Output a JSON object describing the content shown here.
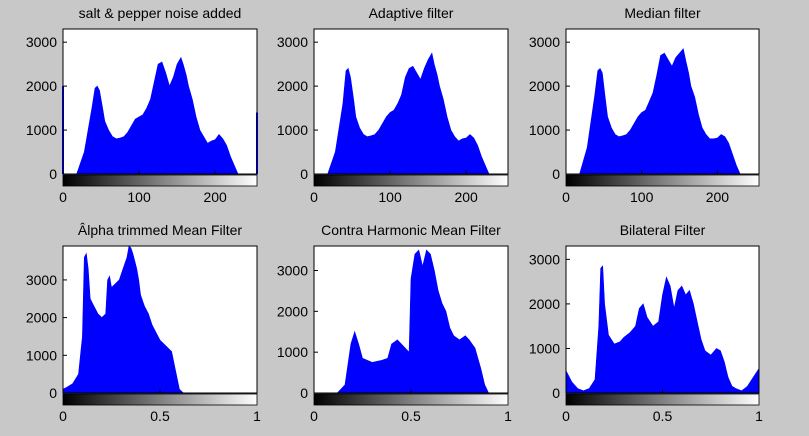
{
  "figure": {
    "background": "#c8c8c8",
    "bar_color": "#0000ff"
  },
  "chart_data": [
    {
      "type": "histogram",
      "title": "salt & pepper noise added",
      "xlim": [
        0,
        255
      ],
      "ylim": [
        0,
        3300
      ],
      "xticks": [
        0,
        100,
        200
      ],
      "xtick_labels": [
        "0",
        "100",
        "200"
      ],
      "yticks": [
        0,
        1000,
        2000,
        3000
      ],
      "ytick_labels": [
        "0",
        "1000",
        "2000",
        "3000"
      ],
      "x": [
        0,
        18,
        28,
        38,
        42,
        45,
        48,
        52,
        55,
        60,
        65,
        70,
        75,
        80,
        85,
        90,
        95,
        100,
        105,
        110,
        115,
        120,
        125,
        130,
        135,
        140,
        145,
        150,
        155,
        158,
        162,
        165,
        170,
        175,
        180,
        185,
        190,
        195,
        200,
        205,
        210,
        215,
        220,
        225,
        230,
        240,
        255
      ],
      "values": [
        0,
        0,
        500,
        1500,
        1950,
        2000,
        1900,
        1500,
        1200,
        1000,
        850,
        800,
        820,
        850,
        950,
        1100,
        1250,
        1300,
        1350,
        1500,
        1700,
        2100,
        2500,
        2550,
        2300,
        2000,
        2200,
        2500,
        2650,
        2500,
        2250,
        2000,
        1700,
        1300,
        1000,
        850,
        700,
        750,
        780,
        900,
        800,
        650,
        400,
        200,
        0,
        0,
        0
      ],
      "spikes": [
        [
          0,
          2000
        ],
        [
          255,
          1400
        ]
      ]
    },
    {
      "type": "histogram",
      "title": "Adaptive filter",
      "xlim": [
        0,
        255
      ],
      "ylim": [
        0,
        3300
      ],
      "xticks": [
        0,
        100,
        200
      ],
      "xtick_labels": [
        "0",
        "100",
        "200"
      ],
      "yticks": [
        0,
        1000,
        2000,
        3000
      ],
      "ytick_labels": [
        "0",
        "1000",
        "2000",
        "3000"
      ],
      "x": [
        0,
        18,
        28,
        38,
        42,
        45,
        48,
        52,
        55,
        60,
        65,
        70,
        75,
        80,
        85,
        90,
        95,
        100,
        105,
        110,
        115,
        120,
        125,
        130,
        135,
        140,
        145,
        150,
        155,
        158,
        162,
        165,
        170,
        175,
        180,
        185,
        190,
        195,
        200,
        205,
        210,
        215,
        220,
        225,
        230,
        240,
        255
      ],
      "values": [
        0,
        0,
        500,
        1600,
        2350,
        2400,
        2200,
        1700,
        1300,
        1050,
        900,
        850,
        870,
        900,
        1000,
        1150,
        1300,
        1400,
        1450,
        1600,
        1800,
        2200,
        2400,
        2450,
        2300,
        2150,
        2400,
        2600,
        2750,
        2500,
        2250,
        2000,
        1700,
        1300,
        1000,
        850,
        750,
        800,
        820,
        900,
        820,
        650,
        400,
        200,
        0,
        0,
        0
      ],
      "spikes": []
    },
    {
      "type": "histogram",
      "title": "Median filter",
      "xlim": [
        0,
        255
      ],
      "ylim": [
        0,
        3300
      ],
      "xticks": [
        0,
        100,
        200
      ],
      "xtick_labels": [
        "0",
        "100",
        "200"
      ],
      "yticks": [
        0,
        1000,
        2000,
        3000
      ],
      "ytick_labels": [
        "0",
        "1000",
        "2000",
        "3000"
      ],
      "x": [
        0,
        18,
        28,
        38,
        42,
        45,
        48,
        52,
        55,
        60,
        65,
        70,
        75,
        80,
        85,
        90,
        95,
        100,
        105,
        110,
        115,
        120,
        125,
        130,
        135,
        140,
        145,
        150,
        155,
        158,
        162,
        165,
        170,
        175,
        180,
        185,
        190,
        195,
        200,
        205,
        210,
        215,
        220,
        225,
        230,
        240,
        255
      ],
      "values": [
        0,
        0,
        600,
        1800,
        2350,
        2400,
        2300,
        1700,
        1300,
        1050,
        900,
        850,
        870,
        900,
        1000,
        1150,
        1300,
        1400,
        1450,
        1650,
        1850,
        2250,
        2700,
        2750,
        2600,
        2450,
        2650,
        2750,
        2850,
        2600,
        2300,
        2000,
        1750,
        1350,
        1050,
        900,
        800,
        800,
        820,
        900,
        850,
        700,
        450,
        200,
        0,
        0,
        0
      ],
      "spikes": []
    },
    {
      "type": "histogram",
      "title": "Âlpha trimmed Mean Filter",
      "xlim": [
        0,
        1
      ],
      "ylim": [
        0,
        3900
      ],
      "xticks": [
        0,
        0.5,
        1
      ],
      "xtick_labels": [
        "0",
        "0.5",
        "1"
      ],
      "yticks": [
        0,
        1000,
        2000,
        3000
      ],
      "ytick_labels": [
        "0",
        "1000",
        "2000",
        "3000"
      ],
      "x": [
        0,
        0.02,
        0.05,
        0.08,
        0.1,
        0.11,
        0.12,
        0.13,
        0.14,
        0.16,
        0.18,
        0.2,
        0.22,
        0.23,
        0.24,
        0.25,
        0.27,
        0.29,
        0.31,
        0.33,
        0.34,
        0.35,
        0.36,
        0.37,
        0.38,
        0.39,
        0.4,
        0.42,
        0.44,
        0.46,
        0.48,
        0.5,
        0.52,
        0.54,
        0.56,
        0.58,
        0.6,
        0.62,
        1
      ],
      "values": [
        100,
        150,
        250,
        500,
        1500,
        3600,
        3700,
        3300,
        2500,
        2300,
        2100,
        2000,
        2100,
        3000,
        3100,
        2800,
        2900,
        3000,
        3300,
        3600,
        3900,
        3850,
        3700,
        3500,
        3300,
        3000,
        2600,
        2300,
        2100,
        1800,
        1600,
        1400,
        1300,
        1200,
        1100,
        600,
        100,
        0,
        0
      ],
      "spikes": []
    },
    {
      "type": "histogram",
      "title": "Contra Harmonic Mean Filter",
      "xlim": [
        0,
        1
      ],
      "ylim": [
        0,
        3600
      ],
      "xticks": [
        0,
        0.5,
        1
      ],
      "xtick_labels": [
        "0",
        "0.5",
        "1"
      ],
      "yticks": [
        0,
        1000,
        2000,
        3000
      ],
      "ytick_labels": [
        "0",
        "1000",
        "2000",
        "3000"
      ],
      "x": [
        0,
        0.12,
        0.16,
        0.19,
        0.21,
        0.23,
        0.25,
        0.3,
        0.35,
        0.38,
        0.4,
        0.43,
        0.46,
        0.49,
        0.5,
        0.52,
        0.54,
        0.56,
        0.58,
        0.6,
        0.62,
        0.64,
        0.66,
        0.68,
        0.7,
        0.72,
        0.75,
        0.78,
        0.8,
        0.83,
        0.86,
        0.88,
        0.9,
        1
      ],
      "values": [
        0,
        0,
        200,
        1200,
        1500,
        1200,
        850,
        750,
        800,
        850,
        1200,
        1300,
        1150,
        1000,
        2800,
        3400,
        3500,
        3100,
        3500,
        3400,
        3000,
        2500,
        2200,
        2000,
        1600,
        1400,
        1300,
        1400,
        1300,
        1100,
        600,
        200,
        0,
        0
      ],
      "spikes": []
    },
    {
      "type": "histogram",
      "title": "Bilateral Filter",
      "xlim": [
        0,
        1
      ],
      "ylim": [
        0,
        3300
      ],
      "xticks": [
        0,
        0.5,
        1
      ],
      "xtick_labels": [
        "0",
        "0.5",
        "1"
      ],
      "yticks": [
        0,
        1000,
        2000,
        3000
      ],
      "ytick_labels": [
        "0",
        "1000",
        "2000",
        "3000"
      ],
      "x": [
        0,
        0.03,
        0.06,
        0.09,
        0.12,
        0.15,
        0.17,
        0.18,
        0.19,
        0.2,
        0.22,
        0.25,
        0.28,
        0.3,
        0.33,
        0.36,
        0.38,
        0.4,
        0.42,
        0.45,
        0.48,
        0.5,
        0.52,
        0.54,
        0.56,
        0.58,
        0.6,
        0.62,
        0.64,
        0.66,
        0.68,
        0.7,
        0.72,
        0.75,
        0.78,
        0.8,
        0.82,
        0.84,
        0.86,
        0.88,
        0.91,
        0.94,
        0.97,
        1
      ],
      "values": [
        500,
        250,
        100,
        50,
        100,
        300,
        1500,
        2800,
        2850,
        2000,
        1300,
        1100,
        1150,
        1250,
        1350,
        1500,
        1900,
        2000,
        1700,
        1500,
        1600,
        2200,
        2600,
        2400,
        1900,
        2300,
        2400,
        2200,
        2300,
        2000,
        1600,
        1200,
        950,
        850,
        1000,
        950,
        700,
        350,
        150,
        100,
        50,
        150,
        350,
        550
      ],
      "spikes": []
    }
  ]
}
